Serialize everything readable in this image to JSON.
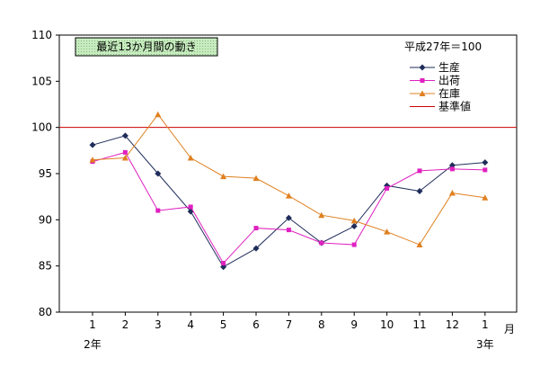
{
  "chart_data": {
    "type": "line",
    "title": "最近13か月間の動き",
    "note": "平成27年＝100",
    "categories": [
      "1",
      "2",
      "3",
      "4",
      "5",
      "6",
      "7",
      "8",
      "9",
      "10",
      "11",
      "12",
      "1"
    ],
    "year_labels": [
      {
        "index": 0,
        "label": "2年"
      },
      {
        "index": 12,
        "label": "3年"
      }
    ],
    "x_unit": "月",
    "ylim": [
      80,
      110
    ],
    "yticks": [
      80,
      85,
      90,
      95,
      100,
      105,
      110
    ],
    "baseline": {
      "name": "基準値",
      "value": 100,
      "color": "#cc0000"
    },
    "series": [
      {
        "name": "生産",
        "color": "#1f2d5a",
        "marker": "diamond",
        "values": [
          98.1,
          99.1,
          95.0,
          90.9,
          84.9,
          86.9,
          90.2,
          87.5,
          89.3,
          93.7,
          93.1,
          95.9,
          96.2
        ]
      },
      {
        "name": "出荷",
        "color": "#e020c0",
        "marker": "square",
        "values": [
          96.3,
          97.3,
          91.0,
          91.4,
          85.3,
          89.1,
          88.9,
          87.5,
          87.3,
          93.4,
          95.3,
          95.5,
          95.4
        ]
      },
      {
        "name": "在庫",
        "color": "#e08020",
        "marker": "triangle",
        "values": [
          96.5,
          96.7,
          101.4,
          96.7,
          94.7,
          94.5,
          92.6,
          90.5,
          89.9,
          88.7,
          87.3,
          92.9,
          92.4
        ]
      }
    ],
    "legend_position": "top-right",
    "grid": false,
    "title_box_color": "#b8e0b0"
  }
}
